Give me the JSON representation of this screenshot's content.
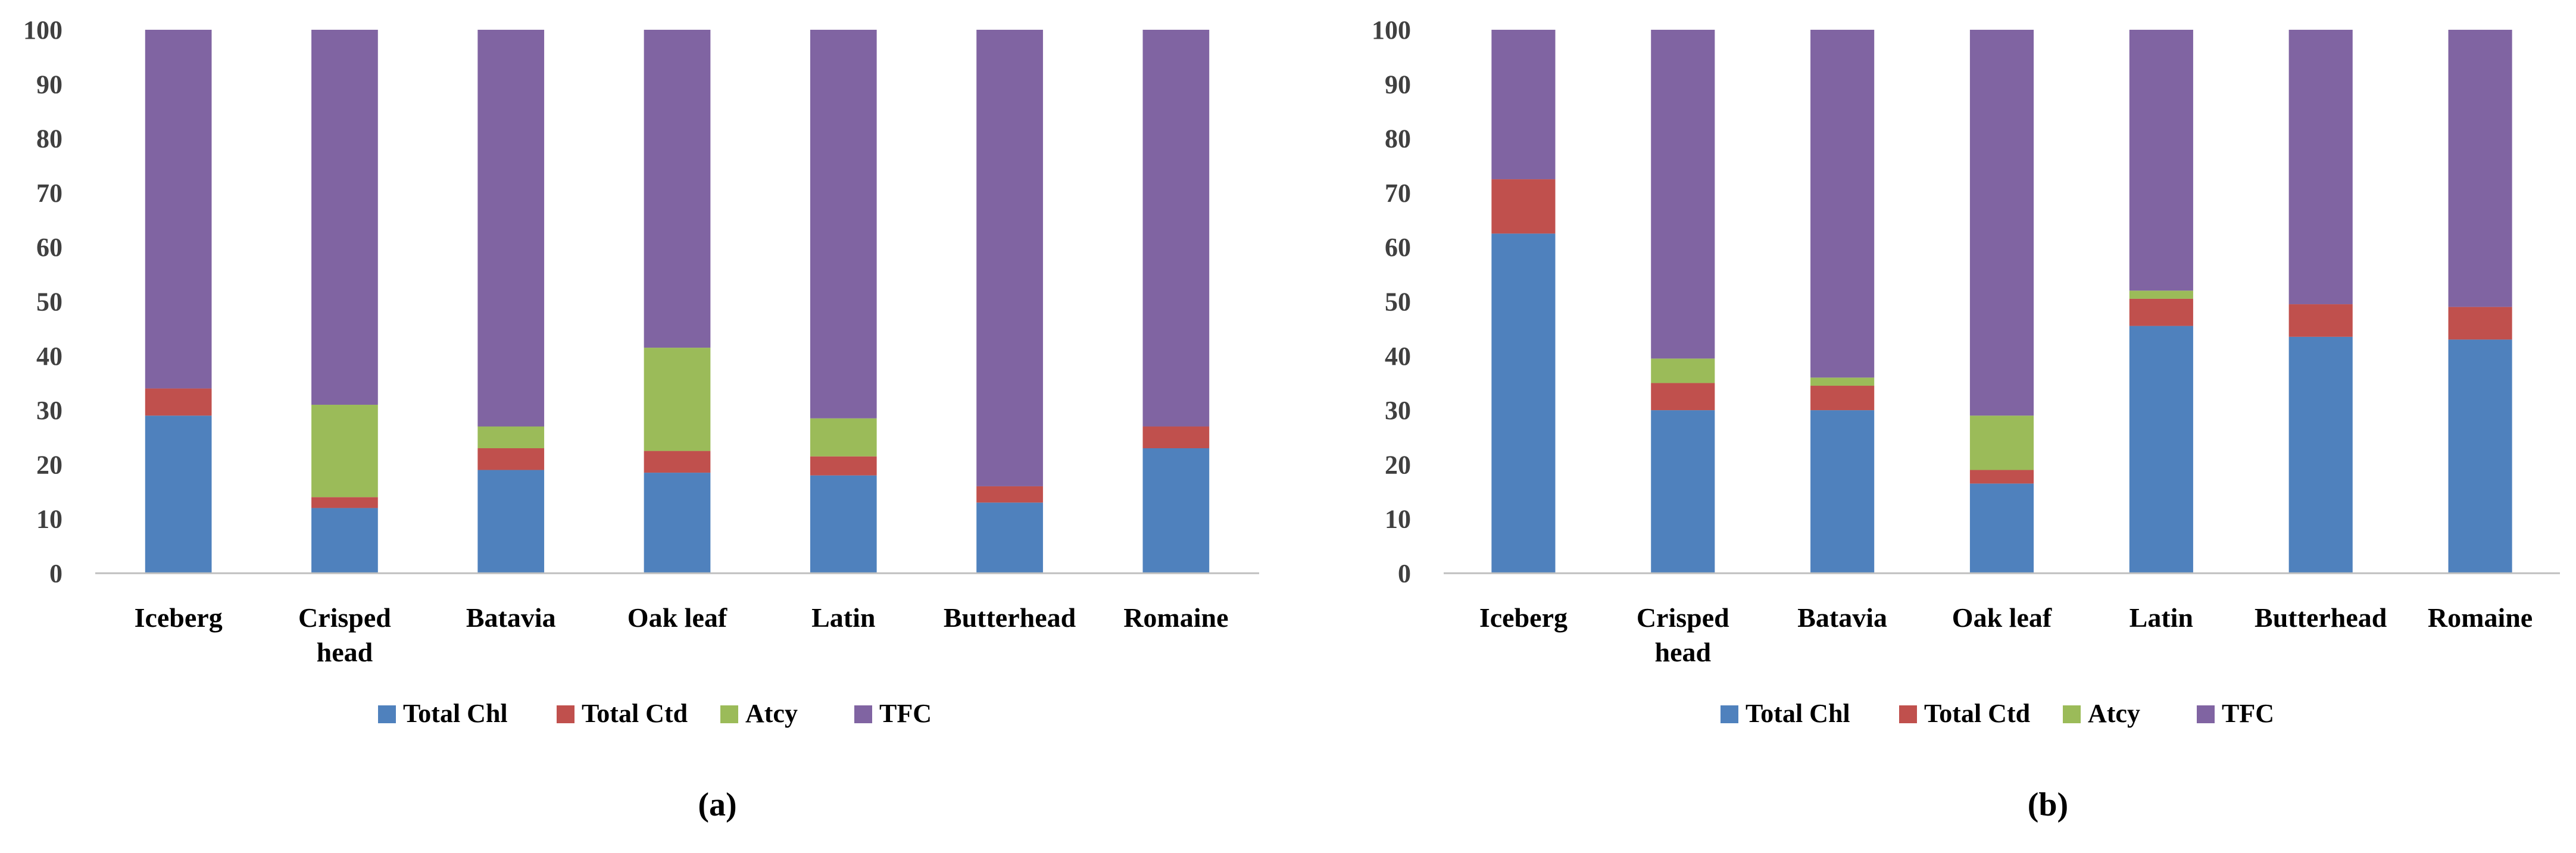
{
  "colors": {
    "Total Chl": "#4F81BD",
    "Total Ctd": "#C0504D",
    "Atcy": "#9BBB59",
    "TFC": "#8064A2",
    "axis": "#BFBFBF"
  },
  "chart_data": [
    {
      "type": "bar",
      "stacked": true,
      "panel_label": "(a)",
      "categories": [
        [
          "Iceberg"
        ],
        [
          "Crisped",
          "head"
        ],
        [
          "Batavia"
        ],
        [
          "Oak leaf"
        ],
        [
          "Latin"
        ],
        [
          "Butterhead"
        ],
        [
          "Romaine"
        ]
      ],
      "series": [
        {
          "name": "Total Chl",
          "values": [
            29,
            12,
            19,
            18.5,
            18,
            13,
            23
          ]
        },
        {
          "name": "Total Ctd",
          "values": [
            5,
            2,
            4,
            4,
            3.5,
            3,
            4
          ]
        },
        {
          "name": "Atcy",
          "values": [
            0,
            17,
            4,
            19,
            7,
            0,
            0
          ]
        },
        {
          "name": "TFC",
          "values": [
            66,
            69,
            73,
            58.5,
            71.5,
            84,
            73
          ]
        }
      ],
      "ylim": [
        0,
        100
      ],
      "yticks": [
        "0",
        "10",
        "20",
        "30",
        "40",
        "50",
        "60",
        "70",
        "80",
        "90",
        "100"
      ],
      "legend": [
        "Total Chl",
        "Total Ctd",
        "Atcy",
        "TFC"
      ],
      "legend_position": "bottom"
    },
    {
      "type": "bar",
      "stacked": true,
      "panel_label": "(b)",
      "categories": [
        [
          "Iceberg"
        ],
        [
          "Crisped",
          "head"
        ],
        [
          "Batavia"
        ],
        [
          "Oak leaf"
        ],
        [
          "Latin"
        ],
        [
          "Butterhead"
        ],
        [
          "Romaine"
        ]
      ],
      "series": [
        {
          "name": "Total Chl",
          "values": [
            62.5,
            30,
            30,
            16.5,
            45.5,
            43.5,
            43
          ]
        },
        {
          "name": "Total Ctd",
          "values": [
            10,
            5,
            4.5,
            2.5,
            5,
            6,
            6
          ]
        },
        {
          "name": "Atcy",
          "values": [
            0,
            4.5,
            1.5,
            10,
            1.5,
            0,
            0
          ]
        },
        {
          "name": "TFC",
          "values": [
            27.5,
            60.5,
            64,
            71,
            48,
            50.5,
            51
          ]
        }
      ],
      "ylim": [
        0,
        100
      ],
      "yticks": [
        "0",
        "10",
        "20",
        "30",
        "40",
        "50",
        "60",
        "70",
        "80",
        "90",
        "100"
      ],
      "legend": [
        "Total Chl",
        "Total Ctd",
        "Atcy",
        "TFC"
      ],
      "legend_position": "bottom"
    }
  ]
}
